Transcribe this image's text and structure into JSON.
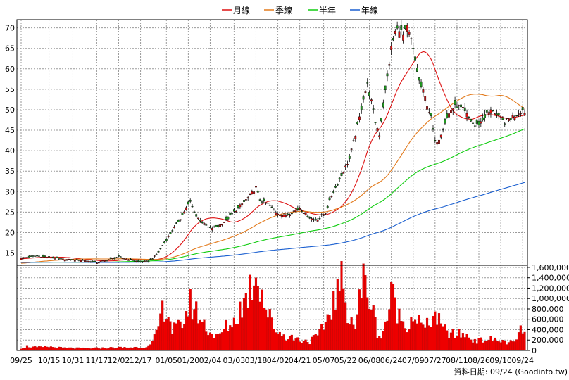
{
  "source_note": "資料日期: 09/24 (Goodinfo.tw)",
  "chart_data": {
    "type": "candlestick",
    "legend": [
      {
        "name": "月線",
        "color": "#dd1111"
      },
      {
        "name": "季線",
        "color": "#e27a1c"
      },
      {
        "name": "半年",
        "color": "#11cc11"
      },
      {
        "name": "年線",
        "color": "#1a5fd0"
      }
    ],
    "colors": {
      "up": "#dd1111",
      "down": "#229922",
      "volume": "#ee0000",
      "volume_border": "#aa0000"
    },
    "price_axis": {
      "min": 12,
      "max": 72,
      "ticks": [
        15,
        20,
        25,
        30,
        35,
        40,
        45,
        50,
        55,
        60,
        65,
        70
      ]
    },
    "volume_axis": {
      "min": 0,
      "max": 1640000,
      "ticks": [
        0,
        200000,
        400000,
        600000,
        800000,
        1000000,
        1200000,
        1400000,
        1600000
      ],
      "tick_labels": [
        "0",
        "200,000",
        "400,000",
        "600,000",
        "800,000",
        "1,000,000",
        "1,200,000",
        "1,400,000",
        "1,600,000"
      ]
    },
    "x_labels": [
      {
        "label": "09/25",
        "index": 0
      },
      {
        "label": "10/15",
        "index": 14
      },
      {
        "label": "10/31",
        "index": 26
      },
      {
        "label": "11/17",
        "index": 38
      },
      {
        "label": "12/02",
        "index": 49
      },
      {
        "label": "12/17",
        "index": 60
      },
      {
        "label": "01/05",
        "index": 73
      },
      {
        "label": "01/20",
        "index": 84
      },
      {
        "label": "02/04",
        "index": 95
      },
      {
        "label": "03/03",
        "index": 107
      },
      {
        "label": "03/18",
        "index": 118
      },
      {
        "label": "04/02",
        "index": 129
      },
      {
        "label": "04/21",
        "index": 140
      },
      {
        "label": "05/07",
        "index": 152
      },
      {
        "label": "05/22",
        "index": 163
      },
      {
        "label": "06/08",
        "index": 175
      },
      {
        "label": "06/24",
        "index": 186
      },
      {
        "label": "07/09",
        "index": 197
      },
      {
        "label": "07/27",
        "index": 208
      },
      {
        "label": "08/11",
        "index": 219
      },
      {
        "label": "08/26",
        "index": 230
      },
      {
        "label": "09/10",
        "index": 241
      },
      {
        "label": "09/24",
        "index": 252
      }
    ],
    "close_anchors": [
      [
        0,
        13.8
      ],
      [
        8,
        14.3
      ],
      [
        14,
        13.9
      ],
      [
        20,
        13.5
      ],
      [
        26,
        13.3
      ],
      [
        32,
        13.2
      ],
      [
        38,
        12.6
      ],
      [
        44,
        13.4
      ],
      [
        49,
        14.0
      ],
      [
        55,
        13.3
      ],
      [
        60,
        12.8
      ],
      [
        64,
        13.0
      ],
      [
        68,
        14.5
      ],
      [
        72,
        17.5
      ],
      [
        76,
        20.5
      ],
      [
        80,
        23.5
      ],
      [
        83,
        26
      ],
      [
        85,
        27.5
      ],
      [
        88,
        24
      ],
      [
        92,
        22
      ],
      [
        95,
        21
      ],
      [
        99,
        21.5
      ],
      [
        103,
        23
      ],
      [
        107,
        25
      ],
      [
        111,
        27
      ],
      [
        115,
        29
      ],
      [
        118,
        31
      ],
      [
        120,
        28
      ],
      [
        124,
        27
      ],
      [
        128,
        25
      ],
      [
        132,
        24
      ],
      [
        136,
        25
      ],
      [
        140,
        26
      ],
      [
        143,
        24.5
      ],
      [
        147,
        23
      ],
      [
        150,
        23.5
      ],
      [
        153,
        25
      ],
      [
        156,
        29
      ],
      [
        159,
        32
      ],
      [
        162,
        35
      ],
      [
        165,
        38
      ],
      [
        168,
        44
      ],
      [
        170,
        48
      ],
      [
        172,
        53
      ],
      [
        174,
        56
      ],
      [
        176,
        52
      ],
      [
        178,
        47
      ],
      [
        180,
        44
      ],
      [
        182,
        51
      ],
      [
        184,
        58
      ],
      [
        186,
        65
      ],
      [
        188,
        69
      ],
      [
        190,
        70
      ],
      [
        192,
        68
      ],
      [
        194,
        70
      ],
      [
        196,
        67
      ],
      [
        198,
        62
      ],
      [
        200,
        57
      ],
      [
        203,
        53
      ],
      [
        206,
        48
      ],
      [
        208,
        42
      ],
      [
        210,
        43
      ],
      [
        213,
        47
      ],
      [
        216,
        50
      ],
      [
        219,
        51
      ],
      [
        222,
        50
      ],
      [
        225,
        48
      ],
      [
        228,
        46
      ],
      [
        231,
        47
      ],
      [
        234,
        49
      ],
      [
        237,
        50
      ],
      [
        240,
        48
      ],
      [
        243,
        47
      ],
      [
        246,
        48
      ],
      [
        249,
        49
      ],
      [
        252,
        50
      ],
      [
        253,
        49.5
      ]
    ],
    "volume_anchors": [
      [
        0,
        45000
      ],
      [
        3,
        80000
      ],
      [
        8,
        55000
      ],
      [
        14,
        70000
      ],
      [
        20,
        50000
      ],
      [
        30,
        40000
      ],
      [
        40,
        45000
      ],
      [
        50,
        55000
      ],
      [
        60,
        60000
      ],
      [
        65,
        90000
      ],
      [
        68,
        300000
      ],
      [
        70,
        650000
      ],
      [
        72,
        850000
      ],
      [
        74,
        700000
      ],
      [
        76,
        400000
      ],
      [
        80,
        450000
      ],
      [
        83,
        700000
      ],
      [
        85,
        900000
      ],
      [
        88,
        750000
      ],
      [
        92,
        500000
      ],
      [
        95,
        350000
      ],
      [
        99,
        250000
      ],
      [
        103,
        450000
      ],
      [
        107,
        550000
      ],
      [
        110,
        800000
      ],
      [
        113,
        1000000
      ],
      [
        116,
        1300000
      ],
      [
        118,
        1580000
      ],
      [
        120,
        1300000
      ],
      [
        123,
        800000
      ],
      [
        127,
        450000
      ],
      [
        131,
        300000
      ],
      [
        136,
        250000
      ],
      [
        140,
        200000
      ],
      [
        145,
        180000
      ],
      [
        150,
        300000
      ],
      [
        153,
        550000
      ],
      [
        156,
        850000
      ],
      [
        159,
        1100000
      ],
      [
        161,
        1300000
      ],
      [
        163,
        900000
      ],
      [
        165,
        700000
      ],
      [
        168,
        450000
      ],
      [
        170,
        950000
      ],
      [
        172,
        1350000
      ],
      [
        173,
        1250000
      ],
      [
        175,
        1050000
      ],
      [
        177,
        700000
      ],
      [
        179,
        350000
      ],
      [
        181,
        250000
      ],
      [
        184,
        650000
      ],
      [
        186,
        1050000
      ],
      [
        188,
        950000
      ],
      [
        190,
        650000
      ],
      [
        193,
        500000
      ],
      [
        196,
        600000
      ],
      [
        198,
        700000
      ],
      [
        200,
        550000
      ],
      [
        203,
        400000
      ],
      [
        206,
        600000
      ],
      [
        208,
        700000
      ],
      [
        211,
        450000
      ],
      [
        214,
        350000
      ],
      [
        218,
        300000
      ],
      [
        222,
        320000
      ],
      [
        226,
        230000
      ],
      [
        230,
        180000
      ],
      [
        234,
        220000
      ],
      [
        238,
        200000
      ],
      [
        242,
        170000
      ],
      [
        246,
        150000
      ],
      [
        249,
        160000
      ],
      [
        251,
        450000
      ],
      [
        253,
        330000
      ]
    ]
  }
}
